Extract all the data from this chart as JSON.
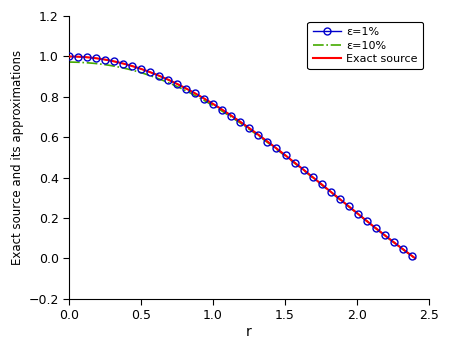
{
  "title": "",
  "xlabel": "r",
  "ylabel": "Exact source and its approximations",
  "xlim": [
    0,
    2.5
  ],
  "ylim": [
    -0.2,
    1.2
  ],
  "xticks": [
    0,
    0.5,
    1,
    1.5,
    2,
    2.5
  ],
  "yticks": [
    -0.2,
    0,
    0.2,
    0.4,
    0.6,
    0.8,
    1,
    1.2
  ],
  "exact_color": "#ff0000",
  "eps1_color": "#0000cc",
  "eps10_color": "#44aa00",
  "legend_labels": [
    "ε=1%",
    "ε=10%",
    "Exact source"
  ],
  "background_color": "#ffffff",
  "r_max": 2.4048,
  "num_points": 500,
  "circle_every": 13,
  "eps10_bias_amplitude": 0.055,
  "eps10_bias_decay": 1.8
}
